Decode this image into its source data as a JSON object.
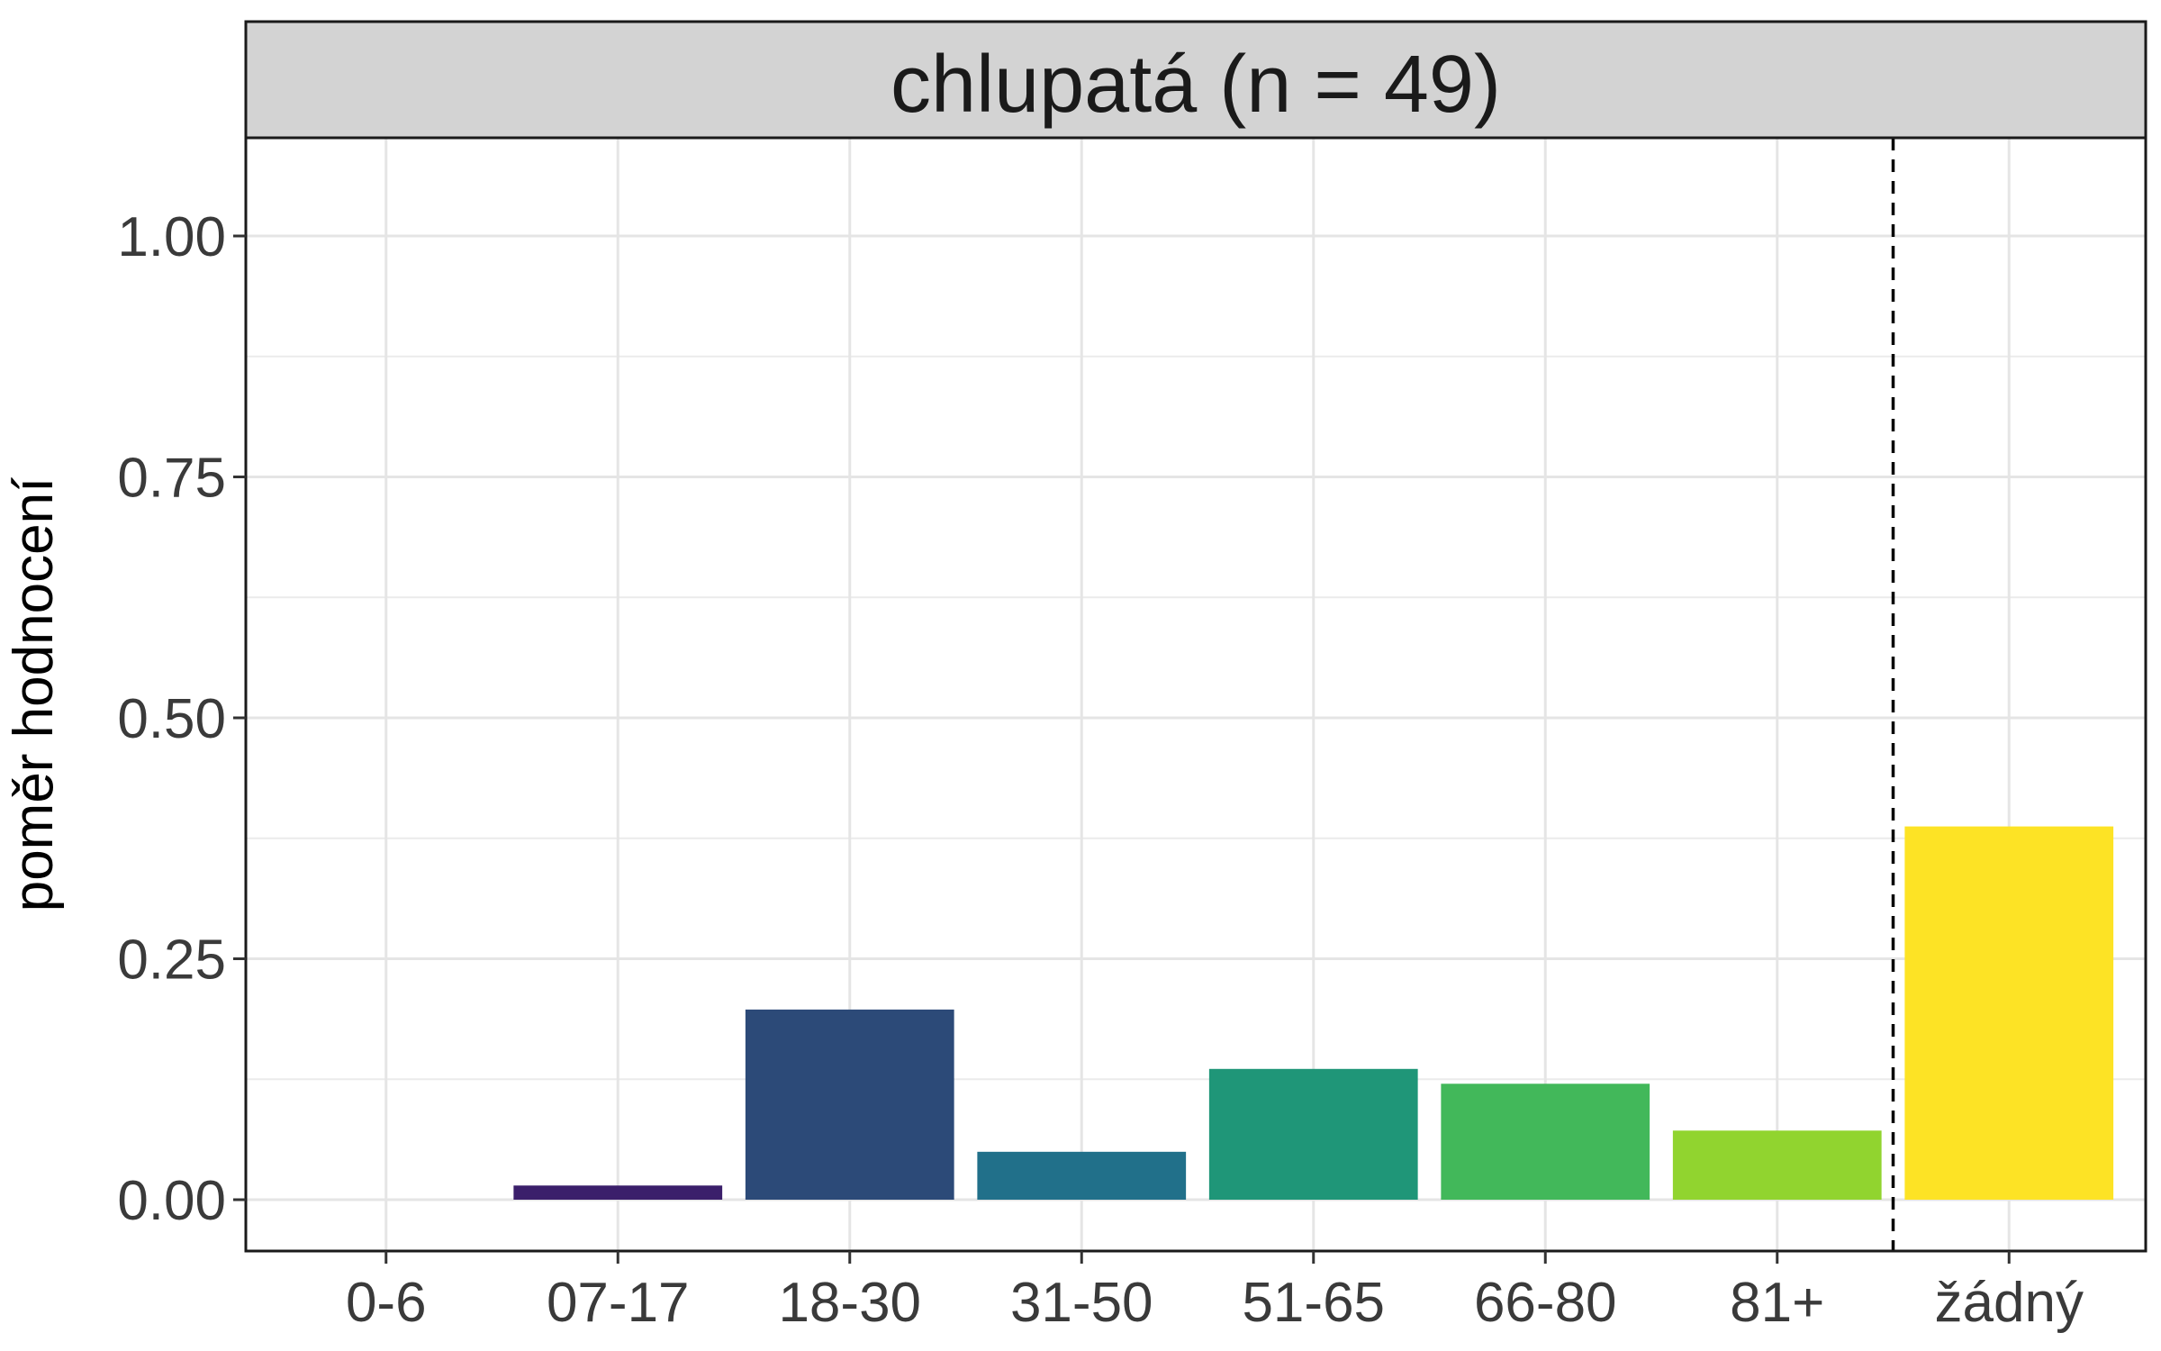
{
  "chart_data": {
    "type": "bar",
    "title": "chlupatá (n = 49)",
    "xlabel": "",
    "ylabel": "poměr hodnocení",
    "categories": [
      "0-6",
      "07-17",
      "18-30",
      "31-50",
      "51-65",
      "66-80",
      "81+",
      "žádný"
    ],
    "values": [
      0.0,
      0.0147,
      0.1973,
      0.0497,
      0.1357,
      0.1203,
      0.0717,
      0.3873
    ],
    "colors": [
      "#440154",
      "#3b1f6b",
      "#2c4a78",
      "#21708a",
      "#1f9678",
      "#42b85a",
      "#91d42f",
      "#fde325"
    ],
    "ylim": [
      -0.05,
      1.1
    ],
    "yticks": [
      0.0,
      0.25,
      0.5,
      0.75,
      1.0
    ],
    "ytick_labels": [
      "0.00",
      "0.25",
      "0.50",
      "0.75",
      "1.00"
    ],
    "minor_yticks": [
      0.125,
      0.375,
      0.625,
      0.875
    ],
    "separator_after_category": "81+",
    "grid": true,
    "legend": "none"
  }
}
